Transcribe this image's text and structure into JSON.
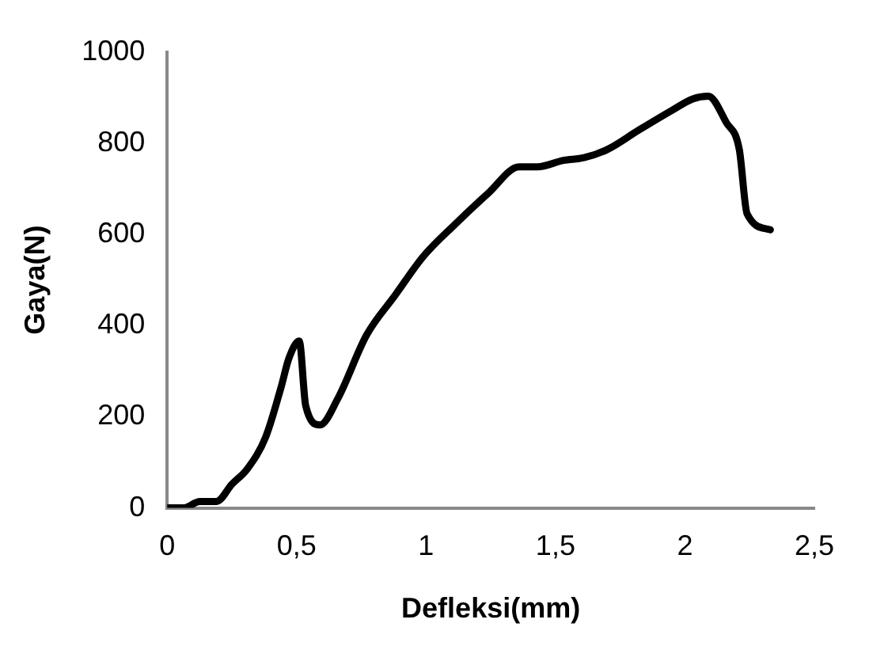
{
  "chart_data": {
    "type": "line",
    "xlabel": "Defleksi(mm)",
    "ylabel": "Gaya(N)",
    "xlim": [
      0,
      2.5
    ],
    "ylim": [
      0,
      1000
    ],
    "xticks": [
      0,
      {
        "value": 0.5,
        "label": "0,5"
      },
      1,
      {
        "value": 1.5,
        "label": "1,5"
      },
      2,
      {
        "value": 2.5,
        "label": "2,5"
      }
    ],
    "yticks": [
      0,
      200,
      400,
      600,
      800,
      1000
    ],
    "grid": false,
    "legend": false,
    "marker": "none",
    "line_style": "solid",
    "series": [
      {
        "color": "#000000",
        "x": [
          0,
          0.063,
          0.126,
          0.19,
          0.25,
          0.31,
          0.38,
          0.44,
          0.47,
          0.51,
          0.535,
          0.59,
          0.66,
          0.77,
          0.88,
          0.99,
          1.11,
          1.24,
          1.36,
          1.43,
          1.53,
          1.61,
          1.7,
          1.82,
          1.95,
          2.03,
          2.09,
          2.16,
          2.21,
          2.24,
          2.33
        ],
        "values": [
          0,
          0,
          14,
          14,
          52,
          86,
          155,
          265,
          328,
          366,
          224,
          182,
          241,
          379,
          466,
          552,
          621,
          690,
          748,
          748,
          762,
          768,
          786,
          828,
          872,
          897,
          903,
          845,
          786,
          645,
          610
        ]
      }
    ]
  }
}
